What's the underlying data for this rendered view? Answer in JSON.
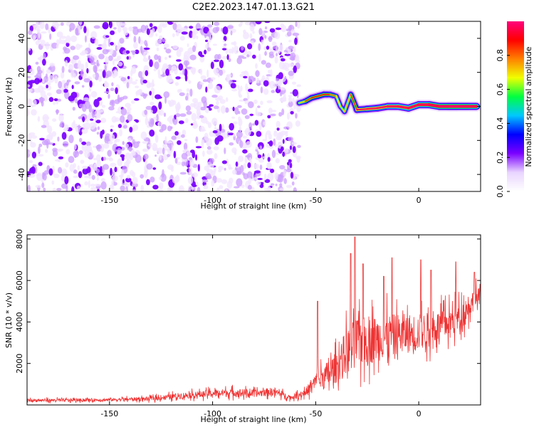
{
  "title": "C2E2.2023.147.01.13.G21",
  "chart_data": [
    {
      "type": "heatmap",
      "title": "C2E2.2023.147.01.13.G21",
      "xlabel": "Height of straight line (km)",
      "ylabel": "Frequency (Hz)",
      "xlim": [
        -190,
        30
      ],
      "ylim": [
        -50,
        50
      ],
      "x_ticks": [
        -150,
        -100,
        -50,
        0
      ],
      "y_ticks": [
        -40,
        -20,
        0,
        20,
        40
      ],
      "colorbar": {
        "label": "Normalized spectral amplitude",
        "range": [
          0,
          1
        ],
        "ticks": [
          "0.0",
          "0.2",
          "0.4",
          "0.6",
          "0.8"
        ],
        "colormap": [
          "#ffffff",
          "#e9d4ff",
          "#7a00ff",
          "#0000ff",
          "#00c8ff",
          "#00ff40",
          "#f0ff00",
          "#ff8000",
          "#ff0000",
          "#ff0080"
        ]
      },
      "noise_region": {
        "x": [
          -190,
          -58
        ],
        "amplitude": 0.25
      },
      "signal_trace": [
        {
          "x": -58,
          "y": 2,
          "amplitude": 0.45
        },
        {
          "x": -55,
          "y": 3,
          "amplitude": 0.5
        },
        {
          "x": -52,
          "y": 5,
          "amplitude": 0.6
        },
        {
          "x": -49,
          "y": 6,
          "amplitude": 0.55
        },
        {
          "x": -46,
          "y": 7,
          "amplitude": 0.6
        },
        {
          "x": -43,
          "y": 7,
          "amplitude": 0.55
        },
        {
          "x": -40,
          "y": 6,
          "amplitude": 0.5
        },
        {
          "x": -38,
          "y": 0,
          "amplitude": 0.4
        },
        {
          "x": -36,
          "y": -3,
          "amplitude": 0.45
        },
        {
          "x": -33,
          "y": 7,
          "amplitude": 0.5
        },
        {
          "x": -30,
          "y": -2,
          "amplitude": 0.6
        },
        {
          "x": -25,
          "y": -1.5,
          "amplitude": 0.7
        },
        {
          "x": -20,
          "y": -1,
          "amplitude": 0.7
        },
        {
          "x": -15,
          "y": 0,
          "amplitude": 0.75
        },
        {
          "x": -10,
          "y": 0,
          "amplitude": 0.8
        },
        {
          "x": -5,
          "y": -1,
          "amplitude": 0.8
        },
        {
          "x": 0,
          "y": 1,
          "amplitude": 0.85
        },
        {
          "x": 5,
          "y": 1,
          "amplitude": 0.85
        },
        {
          "x": 10,
          "y": 0,
          "amplitude": 0.9
        },
        {
          "x": 15,
          "y": 0,
          "amplitude": 0.95
        },
        {
          "x": 20,
          "y": 0,
          "amplitude": 0.95
        },
        {
          "x": 25,
          "y": 0,
          "amplitude": 0.9
        },
        {
          "x": 28,
          "y": 0,
          "amplitude": 0.85
        }
      ]
    },
    {
      "type": "line",
      "xlabel": "Height of straight line (km)",
      "ylabel": "SNR (10 * v/v)",
      "xlim": [
        -190,
        30
      ],
      "ylim": [
        0,
        8200
      ],
      "x_ticks": [
        -150,
        -100,
        -50,
        0
      ],
      "y_ticks": [
        2000,
        4000,
        6000,
        8000
      ],
      "line_color": "#ee3333",
      "envelope": [
        {
          "x": -190,
          "y": 220,
          "spread": 150
        },
        {
          "x": -170,
          "y": 230,
          "spread": 150
        },
        {
          "x": -150,
          "y": 250,
          "spread": 150
        },
        {
          "x": -130,
          "y": 300,
          "spread": 200
        },
        {
          "x": -115,
          "y": 450,
          "spread": 300
        },
        {
          "x": -100,
          "y": 550,
          "spread": 350
        },
        {
          "x": -90,
          "y": 600,
          "spread": 400
        },
        {
          "x": -80,
          "y": 550,
          "spread": 350
        },
        {
          "x": -70,
          "y": 650,
          "spread": 400
        },
        {
          "x": -62,
          "y": 350,
          "spread": 200
        },
        {
          "x": -55,
          "y": 600,
          "spread": 400
        },
        {
          "x": -50,
          "y": 1100,
          "spread": 900
        },
        {
          "x": -45,
          "y": 1400,
          "spread": 1300
        },
        {
          "x": -40,
          "y": 1800,
          "spread": 1500
        },
        {
          "x": -35,
          "y": 2600,
          "spread": 2200
        },
        {
          "x": -30,
          "y": 3000,
          "spread": 2500
        },
        {
          "x": -20,
          "y": 3200,
          "spread": 2200
        },
        {
          "x": -10,
          "y": 3400,
          "spread": 2000
        },
        {
          "x": 0,
          "y": 3500,
          "spread": 1800
        },
        {
          "x": 10,
          "y": 3800,
          "spread": 1500
        },
        {
          "x": 20,
          "y": 4200,
          "spread": 1400
        },
        {
          "x": 25,
          "y": 4900,
          "spread": 1200
        },
        {
          "x": 30,
          "y": 5200,
          "spread": 1000
        }
      ],
      "peaks": [
        {
          "x": -49,
          "y": 5000
        },
        {
          "x": -33,
          "y": 7300
        },
        {
          "x": -31,
          "y": 8100
        },
        {
          "x": -27,
          "y": 6800
        },
        {
          "x": -17,
          "y": 6200
        },
        {
          "x": -13,
          "y": 7100
        },
        {
          "x": 1,
          "y": 7000
        },
        {
          "x": 6,
          "y": 6500
        },
        {
          "x": 18,
          "y": 6900
        },
        {
          "x": 27,
          "y": 6400
        }
      ]
    }
  ]
}
